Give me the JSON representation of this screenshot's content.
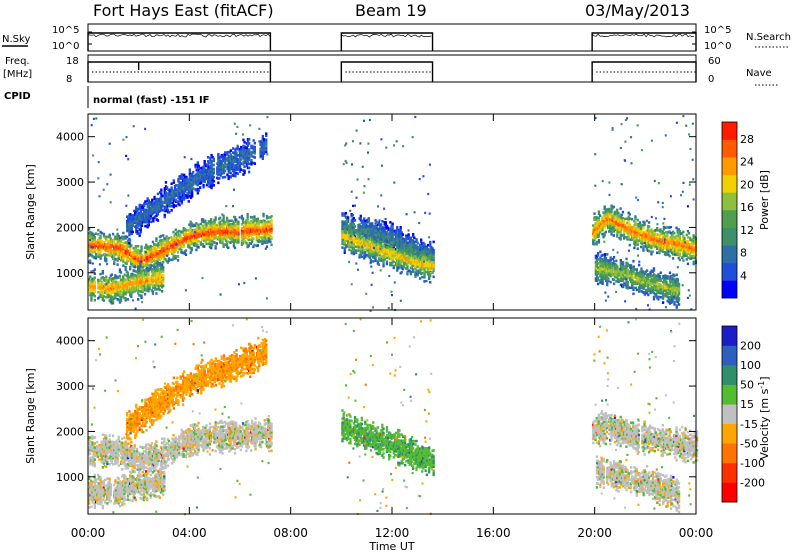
{
  "header": {
    "title": "Fort Hays East (fitACF)",
    "beam": "Beam 19",
    "date": "03/May/2013"
  },
  "status_panels": {
    "nsky_label": "N.Sky",
    "nsearch_label": "N.Search",
    "nsky_ticks": [
      "10^5",
      "10^0"
    ],
    "freq_label": "Freq.",
    "freq_unit": "[MHz]",
    "freq_ticks": [
      "18",
      "8"
    ],
    "nave_label": "Nave",
    "nave_ticks": [
      "60",
      "0"
    ],
    "cpid_label": "CPID",
    "cpid_value": "normal (fast) -151 IF"
  },
  "chart_data": [
    {
      "type": "heatmap",
      "name": "power",
      "xlabel": "Time UT",
      "ylabel": "Slant Range [km]",
      "xlim": [
        0,
        24
      ],
      "ylim": [
        180,
        4500
      ],
      "x_tick_labels": [
        "00:00",
        "04:00",
        "08:00",
        "12:00",
        "16:00",
        "20:00",
        "00:00"
      ],
      "y_ticks": [
        1000,
        2000,
        3000,
        4000
      ],
      "colorbar": {
        "label": "Power [dB]",
        "ticks": [
          "4",
          "8",
          "12",
          "16",
          "20",
          "24",
          "28"
        ],
        "tick_values": [
          4,
          8,
          12,
          16,
          20,
          24,
          28
        ],
        "range": [
          0,
          31
        ],
        "colors": [
          "#0000ff",
          "#1f4fd8",
          "#2f6fa8",
          "#3f8f6a",
          "#4f9f4f",
          "#8fbf3f",
          "#f0d000",
          "#ff9a00",
          "#ff5a00",
          "#ff1a00"
        ]
      },
      "data_windows_hours": [
        [
          0,
          7.2
        ],
        [
          10,
          13.6
        ],
        [
          19.9,
          24
        ]
      ],
      "echo_bands": [
        {
          "t": [
            0,
            1.2,
            2.0,
            3.0,
            4.0,
            5.0,
            6.0,
            7.2
          ],
          "range_km": [
            1600,
            1550,
            1250,
            1500,
            1800,
            1900,
            1900,
            1950
          ],
          "power_db": 28
        },
        {
          "t": [
            0,
            1.0,
            2.0,
            3.0
          ],
          "range_km": [
            700,
            650,
            800,
            900
          ],
          "power_db": 24
        },
        {
          "t": [
            1.5,
            2.5,
            3.5,
            4.5,
            5.5,
            6.5,
            7.0
          ],
          "range_km": [
            2000,
            2400,
            2800,
            3150,
            3400,
            3650,
            3800
          ],
          "power_db": 8
        },
        {
          "t": [
            10,
            11,
            12,
            13,
            13.6
          ],
          "range_km": [
            2100,
            1900,
            1750,
            1450,
            1350
          ],
          "power_db": 10
        },
        {
          "t": [
            10,
            11,
            12,
            13,
            13.6
          ],
          "range_km": [
            1800,
            1600,
            1400,
            1200,
            1150
          ],
          "power_db": 22
        },
        {
          "t": [
            19.9,
            20.5,
            21.5,
            22.5,
            23.5,
            24
          ],
          "range_km": [
            1900,
            2200,
            1900,
            1700,
            1600,
            1500
          ],
          "power_db": 26
        },
        {
          "t": [
            20,
            21,
            22,
            23.3
          ],
          "range_km": [
            1100,
            1000,
            800,
            600
          ],
          "power_db": 18
        }
      ]
    },
    {
      "type": "heatmap",
      "name": "velocity",
      "xlabel": "Time UT",
      "ylabel": "Slant Range [km]",
      "xlim": [
        0,
        24
      ],
      "ylim": [
        180,
        4500
      ],
      "x_tick_labels": [
        "00:00",
        "04:00",
        "08:00",
        "12:00",
        "16:00",
        "20:00",
        "00:00"
      ],
      "y_ticks": [
        1000,
        2000,
        3000,
        4000
      ],
      "colorbar": {
        "label": "Velocity [m s^-1]",
        "ticks": [
          "200",
          "100",
          "50",
          "15",
          "-15",
          "-50",
          "-100",
          "-200"
        ],
        "colors": [
          "#1d1dc8",
          "#2f5fbe",
          "#2f8f6a",
          "#55bb33",
          "#c0c0c0",
          "#ffa500",
          "#ff7300",
          "#ff3000",
          "#ff0000"
        ]
      },
      "data_windows_hours": [
        [
          0,
          7.2
        ],
        [
          10,
          13.6
        ],
        [
          19.9,
          24
        ]
      ],
      "echo_bands": [
        {
          "t": [
            0,
            1.2,
            2.0,
            3.0,
            4.0,
            5.0,
            6.0,
            7.2
          ],
          "range_km": [
            1600,
            1550,
            1350,
            1500,
            1800,
            1900,
            1900,
            1950
          ],
          "velocity": 0
        },
        {
          "t": [
            0,
            1.0,
            2.0,
            3.0
          ],
          "range_km": [
            700,
            650,
            800,
            900
          ],
          "velocity": 0
        },
        {
          "t": [
            1.5,
            2.5,
            3.5,
            4.5,
            5.5,
            6.5,
            7.0
          ],
          "range_km": [
            2100,
            2500,
            2900,
            3200,
            3400,
            3600,
            3800
          ],
          "velocity": -40
        },
        {
          "t": [
            10,
            11,
            12,
            13,
            13.6
          ],
          "range_km": [
            2100,
            1900,
            1700,
            1450,
            1350
          ],
          "velocity": 40
        },
        {
          "t": [
            19.9,
            20.5,
            21.5,
            22.5,
            23.5,
            24
          ],
          "range_km": [
            2000,
            2100,
            1900,
            1800,
            1700,
            1650
          ],
          "velocity": 0
        },
        {
          "t": [
            20,
            21,
            22,
            23.3
          ],
          "range_km": [
            1150,
            1000,
            850,
            600
          ],
          "velocity": 0
        }
      ]
    }
  ]
}
